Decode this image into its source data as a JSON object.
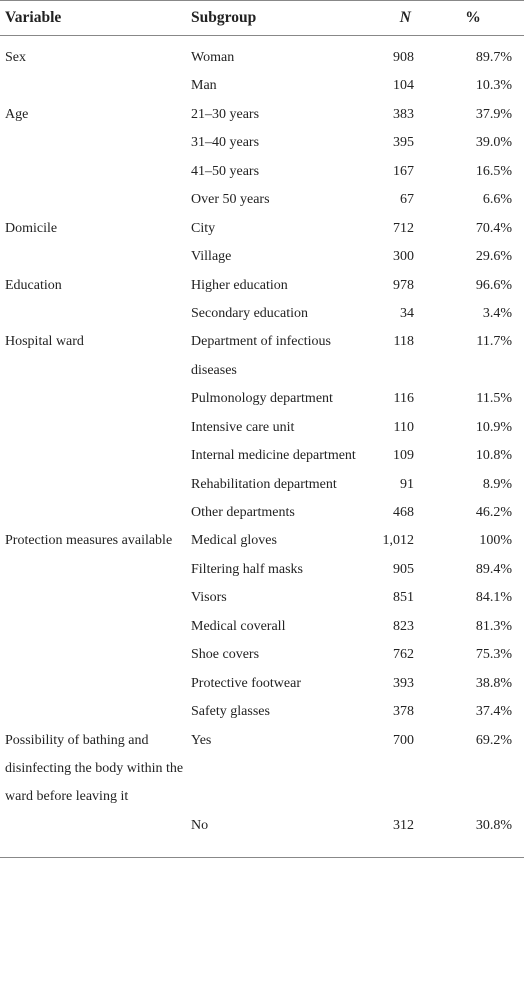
{
  "table": {
    "columns": [
      "Variable",
      "Subgroup",
      "N",
      "%"
    ],
    "groups": [
      {
        "variable": "Sex",
        "rows": [
          [
            "Woman",
            "908",
            "89.7%"
          ],
          [
            "Man",
            "104",
            "10.3%"
          ]
        ]
      },
      {
        "variable": "Age",
        "rows": [
          [
            "21–30 years",
            "383",
            "37.9%"
          ],
          [
            "31–40 years",
            "395",
            "39.0%"
          ],
          [
            "41–50 years",
            "167",
            "16.5%"
          ],
          [
            "Over 50 years",
            "67",
            "6.6%"
          ]
        ]
      },
      {
        "variable": "Domicile",
        "rows": [
          [
            "City",
            "712",
            "70.4%"
          ],
          [
            "Village",
            "300",
            "29.6%"
          ]
        ]
      },
      {
        "variable": "Education",
        "rows": [
          [
            "Higher education",
            "978",
            "96.6%"
          ],
          [
            "Secondary education",
            "34",
            "3.4%"
          ]
        ]
      },
      {
        "variable": "Hospital ward",
        "rows": [
          [
            "Department of infectious diseases",
            "118",
            "11.7%"
          ],
          [
            "Pulmonology department",
            "116",
            "11.5%"
          ],
          [
            "Intensive care unit",
            "110",
            "10.9%"
          ],
          [
            "Internal medicine department",
            "109",
            "10.8%"
          ],
          [
            "Rehabilitation department",
            "91",
            "8.9%"
          ],
          [
            "Other departments",
            "468",
            "46.2%"
          ]
        ]
      },
      {
        "variable": "Protection measures available",
        "rows": [
          [
            "Medical gloves",
            "1,012",
            "100%"
          ],
          [
            "Filtering half masks",
            "905",
            "89.4%"
          ],
          [
            "Visors",
            "851",
            "84.1%"
          ],
          [
            "Medical coverall",
            "823",
            "81.3%"
          ],
          [
            "Shoe covers",
            "762",
            "75.3%"
          ],
          [
            "Protective footwear",
            "393",
            "38.8%"
          ],
          [
            "Safety glasses",
            "378",
            "37.4%"
          ]
        ]
      },
      {
        "variable": "Possibility of bathing and disinfecting the body within the ward before leaving it",
        "rows": [
          [
            "Yes",
            "700",
            "69.2%"
          ],
          [
            "No",
            "312",
            "30.8%"
          ]
        ]
      }
    ]
  }
}
